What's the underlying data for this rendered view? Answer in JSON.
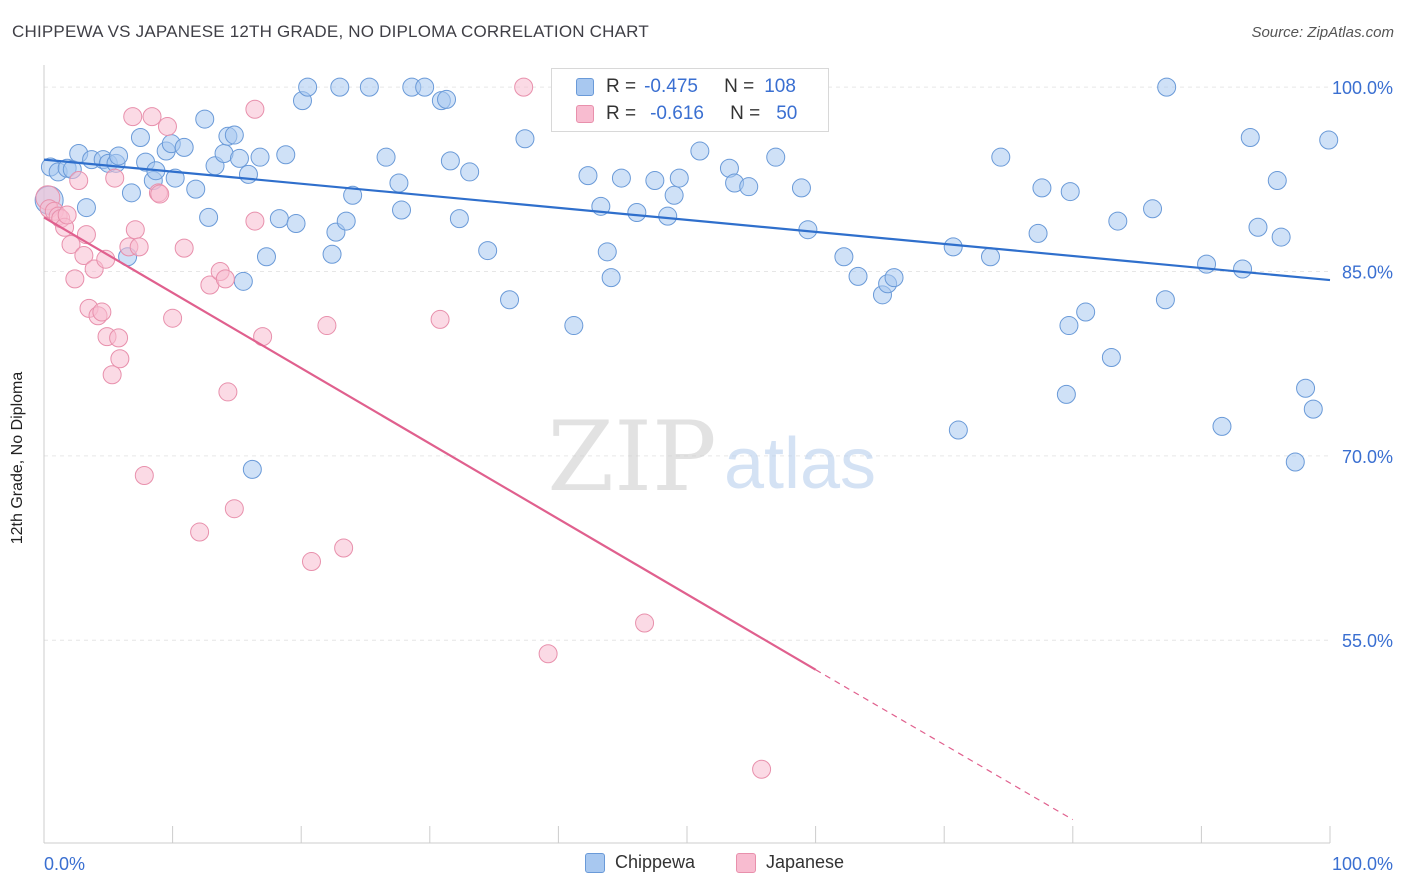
{
  "header": {
    "title": "CHIPPEWA VS JAPANESE 12TH GRADE, NO DIPLOMA CORRELATION CHART",
    "source": "Source: ZipAtlas.com"
  },
  "watermark": {
    "zip": "ZIP",
    "atlas": "atlas"
  },
  "legend": {
    "rows": [
      {
        "r_label": "R =",
        "r_value": "-0.475",
        "n_label": "N =",
        "n_value": "108"
      },
      {
        "r_label": "R =",
        "r_value": "-0.616",
        "n_label": "N =",
        "n_value": "50"
      }
    ]
  },
  "chart_data": {
    "type": "scatter",
    "title": "CHIPPEWA VS JAPANESE 12TH GRADE, NO DIPLOMA CORRELATION CHART",
    "xlabel": "",
    "ylabel": "12th Grade, No Diploma",
    "x_tick_labels": [
      "0.0%",
      "100.0%"
    ],
    "y_tick_labels": [
      "100.0%",
      "85.0%",
      "70.0%",
      "55.0%"
    ],
    "y_ticks": [
      100,
      85,
      70,
      55
    ],
    "xlim": [
      0,
      100
    ],
    "ylim": [
      38.5,
      101.8
    ],
    "grid": true,
    "legend_position": "top-center",
    "colors": {
      "chippewa_fill": "#a8c8f0",
      "chippewa_stroke": "#6a9ad8",
      "chippewa_line": "#2f6fcc",
      "japanese_fill": "#f8bcd0",
      "japanese_stroke": "#e890ac",
      "japanese_line": "#e0608e",
      "tick_label": "#3a6fd1"
    },
    "series": [
      {
        "name": "Chippewa",
        "trend": {
          "x0": 0,
          "y0": 94.1,
          "x1": 100,
          "y1": 84.3
        },
        "points": [
          [
            0.4,
            90.8
          ],
          [
            0.5,
            93.5
          ],
          [
            1.1,
            93.1
          ],
          [
            1.8,
            93.4
          ],
          [
            2.2,
            93.3
          ],
          [
            2.7,
            94.6
          ],
          [
            3.3,
            90.2
          ],
          [
            3.7,
            94.1
          ],
          [
            4.6,
            94.1
          ],
          [
            5.0,
            93.8
          ],
          [
            5.6,
            93.8
          ],
          [
            5.8,
            94.4
          ],
          [
            6.5,
            86.2
          ],
          [
            6.8,
            91.4
          ],
          [
            7.5,
            95.9
          ],
          [
            7.9,
            93.9
          ],
          [
            8.5,
            92.4
          ],
          [
            8.7,
            93.2
          ],
          [
            9.5,
            94.8
          ],
          [
            9.9,
            95.4
          ],
          [
            10.2,
            92.6
          ],
          [
            10.9,
            95.1
          ],
          [
            11.8,
            91.7
          ],
          [
            12.5,
            97.4
          ],
          [
            12.8,
            89.4
          ],
          [
            13.3,
            93.6
          ],
          [
            14.0,
            94.6
          ],
          [
            14.3,
            96.0
          ],
          [
            14.8,
            96.1
          ],
          [
            15.2,
            94.2
          ],
          [
            15.5,
            84.2
          ],
          [
            15.9,
            92.9
          ],
          [
            16.2,
            68.9
          ],
          [
            16.8,
            94.3
          ],
          [
            17.3,
            86.2
          ],
          [
            18.3,
            89.3
          ],
          [
            18.8,
            94.5
          ],
          [
            19.6,
            88.9
          ],
          [
            20.1,
            98.9
          ],
          [
            20.5,
            100.0
          ],
          [
            22.4,
            86.4
          ],
          [
            22.7,
            88.2
          ],
          [
            23.0,
            100.0
          ],
          [
            23.5,
            89.1
          ],
          [
            24.0,
            91.2
          ],
          [
            25.3,
            100.0
          ],
          [
            26.6,
            94.3
          ],
          [
            27.6,
            92.2
          ],
          [
            27.8,
            90.0
          ],
          [
            28.6,
            100.0
          ],
          [
            29.6,
            100.0
          ],
          [
            30.9,
            98.9
          ],
          [
            31.3,
            99.0
          ],
          [
            31.6,
            94.0
          ],
          [
            32.3,
            89.3
          ],
          [
            33.1,
            93.1
          ],
          [
            34.5,
            86.7
          ],
          [
            36.2,
            82.7
          ],
          [
            37.4,
            95.8
          ],
          [
            41.2,
            80.6
          ],
          [
            42.3,
            92.8
          ],
          [
            43.3,
            90.3
          ],
          [
            43.8,
            86.6
          ],
          [
            44.1,
            84.5
          ],
          [
            44.9,
            92.6
          ],
          [
            46.1,
            89.8
          ],
          [
            47.5,
            92.4
          ],
          [
            48.5,
            89.5
          ],
          [
            49.0,
            91.2
          ],
          [
            49.4,
            92.6
          ],
          [
            51.0,
            94.8
          ],
          [
            53.3,
            93.4
          ],
          [
            53.7,
            92.2
          ],
          [
            54.8,
            91.9
          ],
          [
            56.9,
            94.3
          ],
          [
            58.9,
            91.8
          ],
          [
            59.4,
            88.4
          ],
          [
            62.2,
            86.2
          ],
          [
            63.3,
            84.6
          ],
          [
            65.2,
            83.1
          ],
          [
            65.6,
            84.0
          ],
          [
            66.1,
            84.5
          ],
          [
            70.7,
            87.0
          ],
          [
            71.1,
            72.1
          ],
          [
            73.6,
            86.2
          ],
          [
            74.4,
            94.3
          ],
          [
            77.3,
            88.1
          ],
          [
            77.6,
            91.8
          ],
          [
            79.5,
            75.0
          ],
          [
            79.7,
            80.6
          ],
          [
            79.8,
            91.5
          ],
          [
            81.0,
            81.7
          ],
          [
            83.0,
            78.0
          ],
          [
            83.5,
            89.1
          ],
          [
            86.2,
            90.1
          ],
          [
            87.2,
            82.7
          ],
          [
            87.3,
            100.0
          ],
          [
            90.4,
            85.6
          ],
          [
            91.6,
            72.4
          ],
          [
            93.2,
            85.2
          ],
          [
            93.8,
            95.9
          ],
          [
            94.4,
            88.6
          ],
          [
            95.9,
            92.4
          ],
          [
            96.2,
            87.8
          ],
          [
            97.3,
            69.5
          ],
          [
            98.1,
            75.5
          ],
          [
            98.7,
            73.8
          ],
          [
            99.9,
            95.7
          ]
        ]
      },
      {
        "name": "Japanese",
        "trend": {
          "x0": 0,
          "y0": 89.4,
          "x1": 60,
          "y1": 52.6,
          "dash_x1": 80,
          "dash_y1": 40.4
        },
        "points": [
          [
            0.3,
            91.0
          ],
          [
            0.4,
            90.1
          ],
          [
            0.8,
            89.9
          ],
          [
            1.1,
            89.5
          ],
          [
            1.3,
            89.3
          ],
          [
            1.6,
            88.6
          ],
          [
            1.8,
            89.6
          ],
          [
            2.1,
            87.2
          ],
          [
            2.4,
            84.4
          ],
          [
            2.7,
            92.4
          ],
          [
            3.1,
            86.3
          ],
          [
            3.3,
            88.0
          ],
          [
            3.5,
            82.0
          ],
          [
            3.9,
            85.2
          ],
          [
            4.2,
            81.4
          ],
          [
            4.5,
            81.7
          ],
          [
            4.8,
            86.0
          ],
          [
            4.9,
            79.7
          ],
          [
            5.3,
            76.6
          ],
          [
            5.5,
            92.6
          ],
          [
            5.8,
            79.6
          ],
          [
            5.9,
            77.9
          ],
          [
            6.6,
            87.0
          ],
          [
            6.9,
            97.6
          ],
          [
            7.1,
            88.4
          ],
          [
            7.4,
            87.0
          ],
          [
            7.8,
            68.4
          ],
          [
            8.4,
            97.6
          ],
          [
            8.9,
            91.4
          ],
          [
            9.0,
            91.3
          ],
          [
            9.6,
            96.8
          ],
          [
            10.0,
            81.2
          ],
          [
            10.9,
            86.9
          ],
          [
            12.1,
            63.8
          ],
          [
            12.9,
            83.9
          ],
          [
            13.7,
            85.0
          ],
          [
            14.1,
            84.4
          ],
          [
            14.3,
            75.2
          ],
          [
            14.8,
            65.7
          ],
          [
            16.4,
            98.2
          ],
          [
            16.4,
            89.1
          ],
          [
            17.0,
            79.7
          ],
          [
            20.8,
            61.4
          ],
          [
            22.0,
            80.6
          ],
          [
            23.3,
            62.5
          ],
          [
            30.8,
            81.1
          ],
          [
            37.3,
            100.0
          ],
          [
            39.2,
            53.9
          ],
          [
            46.7,
            56.4
          ],
          [
            55.8,
            44.5
          ]
        ]
      }
    ]
  }
}
